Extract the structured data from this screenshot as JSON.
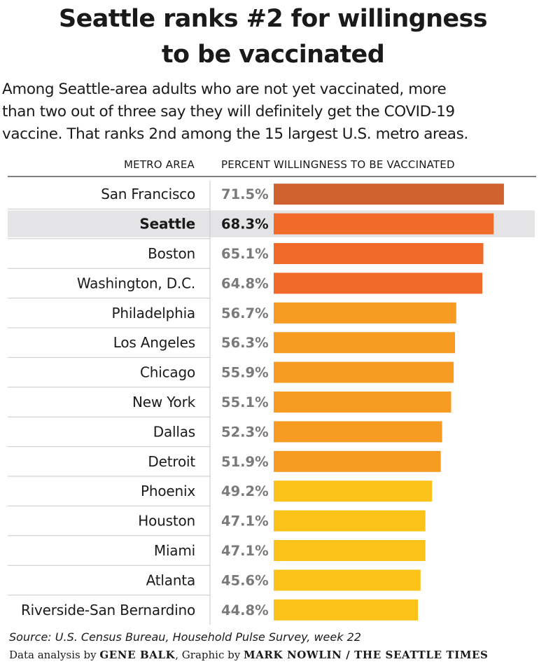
{
  "chart_data": {
    "type": "bar",
    "orientation": "horizontal",
    "title": "Seattle ranks #2 for willingness to be vaccinated",
    "title_lines": [
      "Seattle ranks #2 for willingness",
      "to be vaccinated"
    ],
    "subtitle_lines": [
      "Among Seattle-area adults who are not yet vaccinated, more",
      "than two out of three say they will definitely get the COVID-19",
      "vaccine. That ranks 2nd among the 15 largest U.S. metro areas."
    ],
    "column_headers": {
      "category": "METRO AREA",
      "value": "PERCENT WILLINGNESS TO BE VACCINATED"
    },
    "categories": [
      "San Francisco",
      "Seattle",
      "Boston",
      "Washington, D.C.",
      "Philadelphia",
      "Los Angeles",
      "Chicago",
      "New York",
      "Dallas",
      "Detroit",
      "Phoenix",
      "Houston",
      "Miami",
      "Atlanta",
      "Riverside-San Bernardino"
    ],
    "values": [
      71.5,
      68.3,
      65.1,
      64.8,
      56.7,
      56.3,
      55.9,
      55.1,
      52.3,
      51.9,
      49.2,
      47.1,
      47.1,
      45.6,
      44.8
    ],
    "value_labels": [
      "71.5%",
      "68.3%",
      "65.1%",
      "64.8%",
      "56.7%",
      "56.3%",
      "55.9%",
      "55.1%",
      "52.3%",
      "51.9%",
      "49.2%",
      "47.1%",
      "47.1%",
      "45.6%",
      "44.8%"
    ],
    "highlight": "Seattle",
    "bar_colors": [
      "#d0622f",
      "#f26a2a",
      "#f26a2a",
      "#f26a2a",
      "#f79b22",
      "#f79b22",
      "#f79b22",
      "#f79b22",
      "#f79b22",
      "#f79b22",
      "#fbc21a",
      "#fbc21a",
      "#fbc21a",
      "#fbc21a",
      "#fbc21a"
    ],
    "xlim": [
      0,
      100
    ],
    "grid": false
  },
  "footer": {
    "source": "Source: U.S. Census Bureau, Household Pulse Survey, week 22",
    "credit_prefix": "Data analysis by ",
    "analyst": "GENE BALK",
    "credit_middle": ", Graphic by ",
    "graphic": "MARK NOWLIN / THE SEATTLE TIMES"
  },
  "colors": {
    "highlight_row": "#e4e4e6",
    "value_text": "#7a7a7a",
    "divider": "#c8c8c8"
  }
}
